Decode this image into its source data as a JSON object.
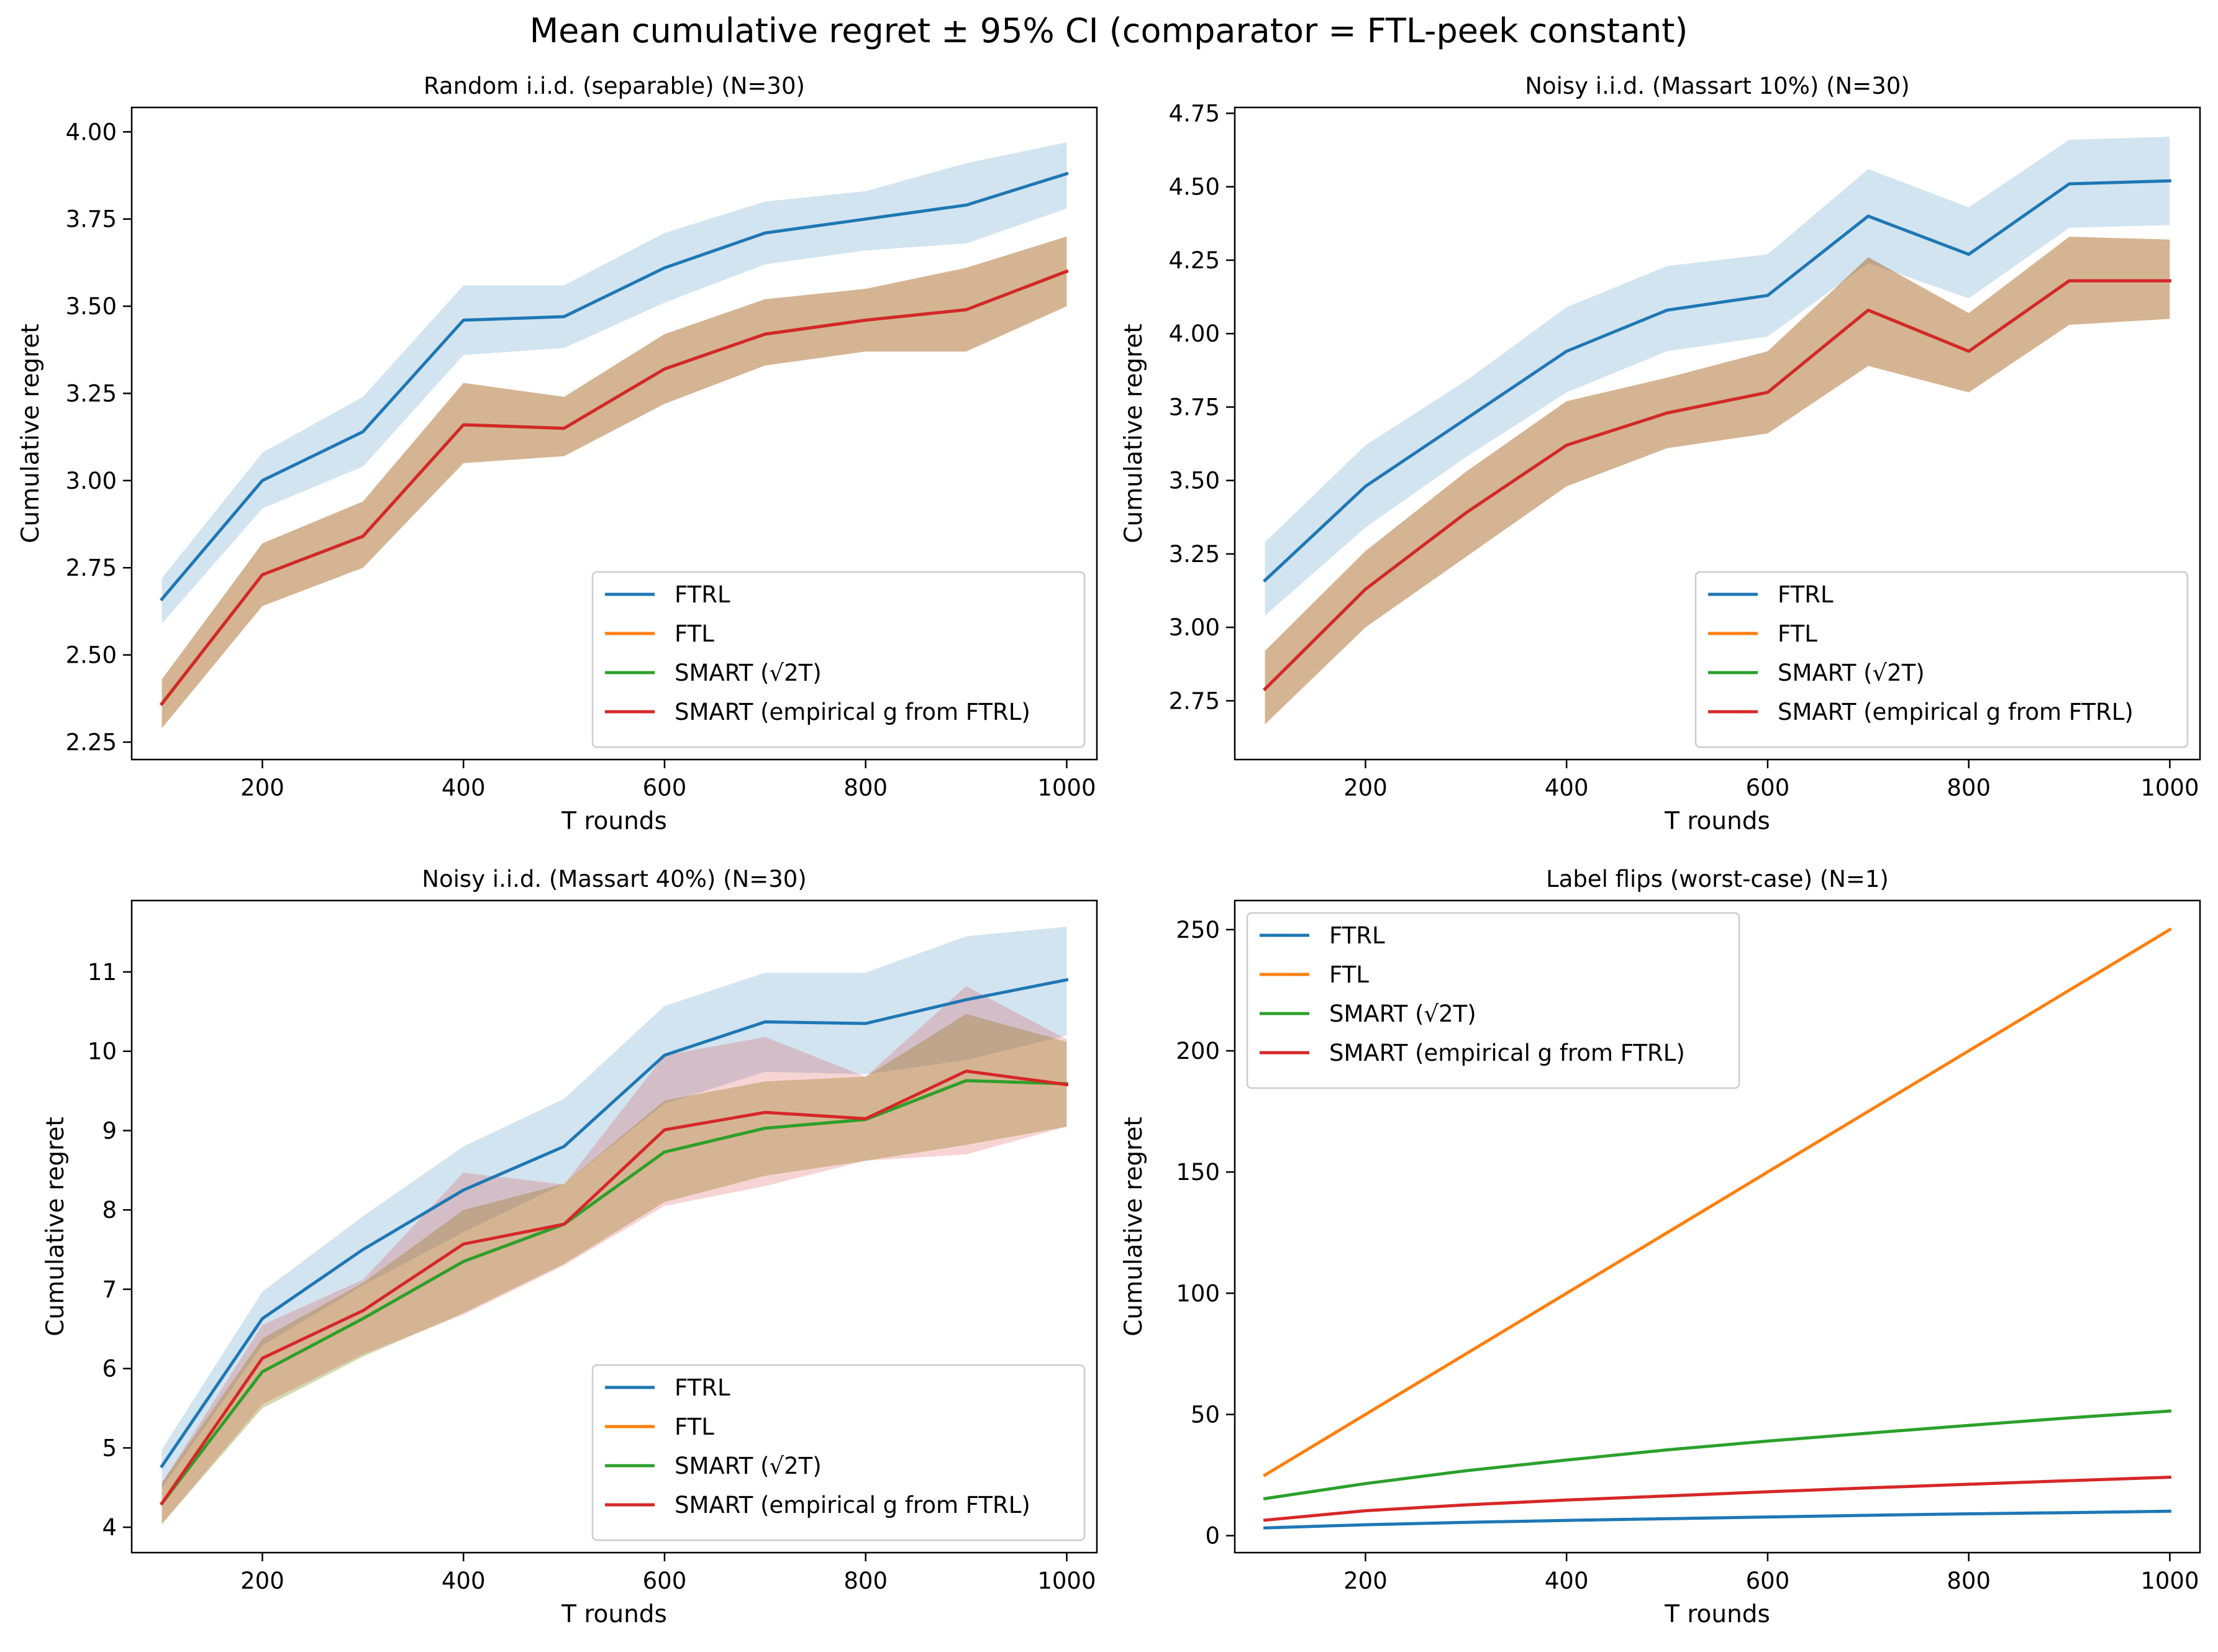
{
  "suptitle": "Mean cumulative regret ± 95% CI (comparator = FTL-peek constant)",
  "colors": {
    "FTRL": "#1f77b4",
    "FTL": "#ff7f0e",
    "SMART_sqrt": "#2ca02c",
    "SMART_emp": "#d62728"
  },
  "chart_data": [
    {
      "type": "line",
      "title": "Random i.i.d. (separable) (N=30)",
      "xlabel": "T rounds",
      "ylabel": "Cumulative regret",
      "x": [
        100,
        200,
        300,
        400,
        500,
        600,
        700,
        800,
        900,
        1000
      ],
      "xlim": [
        70,
        1030
      ],
      "ylim": [
        2.2,
        4.07
      ],
      "xticks": [
        "200",
        "400",
        "600",
        "800",
        "1000"
      ],
      "yticks": [
        "2.25",
        "2.50",
        "2.75",
        "3.00",
        "3.25",
        "3.50",
        "3.75",
        "4.00"
      ],
      "legend_loc": "lower-right",
      "series": [
        {
          "name": "FTRL",
          "values": [
            2.66,
            3.0,
            3.14,
            3.46,
            3.47,
            3.61,
            3.71,
            3.75,
            3.79,
            3.88
          ],
          "ci_low": [
            2.59,
            2.92,
            3.04,
            3.36,
            3.38,
            3.51,
            3.62,
            3.66,
            3.68,
            3.78
          ],
          "ci_high": [
            2.72,
            3.08,
            3.24,
            3.56,
            3.56,
            3.71,
            3.8,
            3.83,
            3.91,
            3.97
          ]
        },
        {
          "name": "FTL",
          "values": [
            2.36,
            2.73,
            2.84,
            3.16,
            3.15,
            3.32,
            3.42,
            3.46,
            3.49,
            3.6
          ],
          "ci_low": [
            2.29,
            2.64,
            2.75,
            3.05,
            3.07,
            3.22,
            3.33,
            3.37,
            3.37,
            3.5
          ],
          "ci_high": [
            2.43,
            2.82,
            2.94,
            3.28,
            3.24,
            3.42,
            3.52,
            3.55,
            3.61,
            3.7
          ]
        },
        {
          "name": "SMART (√2T)",
          "values": [
            2.36,
            2.73,
            2.84,
            3.16,
            3.15,
            3.32,
            3.42,
            3.46,
            3.49,
            3.6
          ],
          "ci_low": [
            2.29,
            2.64,
            2.75,
            3.05,
            3.07,
            3.22,
            3.33,
            3.37,
            3.37,
            3.5
          ],
          "ci_high": [
            2.43,
            2.82,
            2.94,
            3.28,
            3.24,
            3.42,
            3.52,
            3.55,
            3.61,
            3.7
          ]
        },
        {
          "name": "SMART (empirical g from FTRL)",
          "values": [
            2.36,
            2.73,
            2.84,
            3.16,
            3.15,
            3.32,
            3.42,
            3.46,
            3.49,
            3.6
          ],
          "ci_low": [
            2.29,
            2.64,
            2.75,
            3.05,
            3.07,
            3.22,
            3.33,
            3.37,
            3.37,
            3.5
          ],
          "ci_high": [
            2.43,
            2.82,
            2.94,
            3.28,
            3.24,
            3.42,
            3.52,
            3.55,
            3.61,
            3.7
          ]
        }
      ]
    },
    {
      "type": "line",
      "title": "Noisy i.i.d. (Massart 10%) (N=30)",
      "xlabel": "T rounds",
      "ylabel": "Cumulative regret",
      "x": [
        100,
        200,
        300,
        400,
        500,
        600,
        700,
        800,
        900,
        1000
      ],
      "xlim": [
        70,
        1030
      ],
      "ylim": [
        2.55,
        4.77
      ],
      "xticks": [
        "200",
        "400",
        "600",
        "800",
        "1000"
      ],
      "yticks": [
        "2.75",
        "3.00",
        "3.25",
        "3.50",
        "3.75",
        "4.00",
        "4.25",
        "4.50",
        "4.75"
      ],
      "legend_loc": "lower-right",
      "series": [
        {
          "name": "FTRL",
          "values": [
            3.16,
            3.48,
            3.71,
            3.94,
            4.08,
            4.13,
            4.4,
            4.27,
            4.51,
            4.52
          ],
          "ci_low": [
            3.04,
            3.34,
            3.58,
            3.8,
            3.94,
            3.99,
            4.24,
            4.12,
            4.36,
            4.37
          ],
          "ci_high": [
            3.29,
            3.62,
            3.84,
            4.09,
            4.23,
            4.27,
            4.56,
            4.43,
            4.66,
            4.67
          ]
        },
        {
          "name": "FTL",
          "values": [
            2.79,
            3.13,
            3.39,
            3.62,
            3.73,
            3.8,
            4.08,
            3.94,
            4.18,
            4.18
          ],
          "ci_low": [
            2.67,
            3.0,
            3.24,
            3.48,
            3.61,
            3.66,
            3.89,
            3.8,
            4.03,
            4.05
          ],
          "ci_high": [
            2.92,
            3.26,
            3.53,
            3.77,
            3.85,
            3.94,
            4.26,
            4.07,
            4.33,
            4.32
          ]
        },
        {
          "name": "SMART (√2T)",
          "values": [
            2.79,
            3.13,
            3.39,
            3.62,
            3.73,
            3.8,
            4.08,
            3.94,
            4.18,
            4.18
          ],
          "ci_low": [
            2.67,
            3.0,
            3.24,
            3.48,
            3.61,
            3.66,
            3.89,
            3.8,
            4.03,
            4.05
          ],
          "ci_high": [
            2.92,
            3.26,
            3.53,
            3.77,
            3.85,
            3.94,
            4.26,
            4.07,
            4.33,
            4.32
          ]
        },
        {
          "name": "SMART (empirical g from FTRL)",
          "values": [
            2.79,
            3.13,
            3.39,
            3.62,
            3.73,
            3.8,
            4.08,
            3.94,
            4.18,
            4.18
          ],
          "ci_low": [
            2.67,
            3.0,
            3.24,
            3.48,
            3.61,
            3.66,
            3.89,
            3.8,
            4.03,
            4.05
          ],
          "ci_high": [
            2.92,
            3.26,
            3.53,
            3.77,
            3.85,
            3.94,
            4.26,
            4.07,
            4.33,
            4.32
          ]
        }
      ]
    },
    {
      "type": "line",
      "title": "Noisy i.i.d. (Massart 40%) (N=30)",
      "xlabel": "T rounds",
      "ylabel": "Cumulative regret",
      "x": [
        100,
        200,
        300,
        400,
        500,
        600,
        700,
        800,
        900,
        1000
      ],
      "xlim": [
        70,
        1030
      ],
      "ylim": [
        3.68,
        11.9
      ],
      "xticks": [
        "200",
        "400",
        "600",
        "800",
        "1000"
      ],
      "yticks": [
        "4",
        "5",
        "6",
        "7",
        "8",
        "9",
        "10",
        "11"
      ],
      "legend_loc": "lower-right",
      "series": [
        {
          "name": "FTRL",
          "values": [
            4.77,
            6.63,
            7.5,
            8.25,
            8.8,
            9.95,
            10.37,
            10.35,
            10.65,
            10.9
          ],
          "ci_low": [
            4.5,
            6.29,
            7.05,
            7.72,
            8.33,
            9.34,
            9.74,
            9.71,
            9.89,
            10.2
          ],
          "ci_high": [
            4.98,
            6.97,
            7.92,
            8.8,
            9.4,
            10.57,
            10.99,
            10.99,
            11.45,
            11.57
          ]
        },
        {
          "name": "FTL",
          "values": [
            4.3,
            5.96,
            6.63,
            7.35,
            7.82,
            8.73,
            9.03,
            9.14,
            9.63,
            9.59
          ],
          "ci_low": [
            4.04,
            5.5,
            6.15,
            6.7,
            7.32,
            8.1,
            8.43,
            8.62,
            8.82,
            9.05
          ],
          "ci_high": [
            4.56,
            6.38,
            7.08,
            8.0,
            8.33,
            9.38,
            9.62,
            9.68,
            10.47,
            10.12
          ]
        },
        {
          "name": "SMART (√2T)",
          "values": [
            4.3,
            5.96,
            6.63,
            7.35,
            7.82,
            8.73,
            9.03,
            9.14,
            9.63,
            9.59
          ],
          "ci_low": [
            4.04,
            5.5,
            6.15,
            6.7,
            7.32,
            8.1,
            8.43,
            8.62,
            8.82,
            9.05
          ],
          "ci_high": [
            4.56,
            6.38,
            7.08,
            8.0,
            8.33,
            9.38,
            9.62,
            9.68,
            10.47,
            10.12
          ]
        },
        {
          "name": "SMART (empirical g from FTRL)",
          "values": [
            4.3,
            6.13,
            6.73,
            7.57,
            7.82,
            9.01,
            9.23,
            9.15,
            9.75,
            9.58
          ],
          "ci_low": [
            4.04,
            5.55,
            6.18,
            6.68,
            7.3,
            8.05,
            8.3,
            8.62,
            8.7,
            9.05
          ],
          "ci_high": [
            4.56,
            6.55,
            7.12,
            8.47,
            8.32,
            9.95,
            10.18,
            9.68,
            10.82,
            10.15
          ]
        }
      ]
    },
    {
      "type": "line",
      "title": "Label flips (worst-case) (N=1)",
      "xlabel": "T rounds",
      "ylabel": "Cumulative regret",
      "x": [
        100,
        200,
        300,
        400,
        500,
        600,
        700,
        800,
        900,
        1000
      ],
      "xlim": [
        70,
        1030
      ],
      "ylim": [
        -7,
        262
      ],
      "xticks": [
        "200",
        "400",
        "600",
        "800",
        "1000"
      ],
      "yticks": [
        "0",
        "50",
        "100",
        "150",
        "200",
        "250"
      ],
      "legend_loc": "upper-left",
      "series": [
        {
          "name": "FTRL",
          "values": [
            3.2,
            4.5,
            5.5,
            6.3,
            7.0,
            7.7,
            8.4,
            9.0,
            9.5,
            10.1
          ]
        },
        {
          "name": "FTL",
          "values": [
            25,
            50,
            75,
            100,
            125,
            150,
            175,
            200,
            225,
            250
          ]
        },
        {
          "name": "SMART (√2T)",
          "values": [
            15.3,
            21.5,
            26.8,
            31.2,
            35.4,
            39.0,
            42.3,
            45.5,
            48.6,
            51.4
          ]
        },
        {
          "name": "SMART (empirical g from FTRL)",
          "values": [
            6.4,
            10.3,
            12.7,
            14.7,
            16.4,
            18.1,
            19.7,
            21.2,
            22.7,
            24.1
          ]
        }
      ]
    }
  ]
}
